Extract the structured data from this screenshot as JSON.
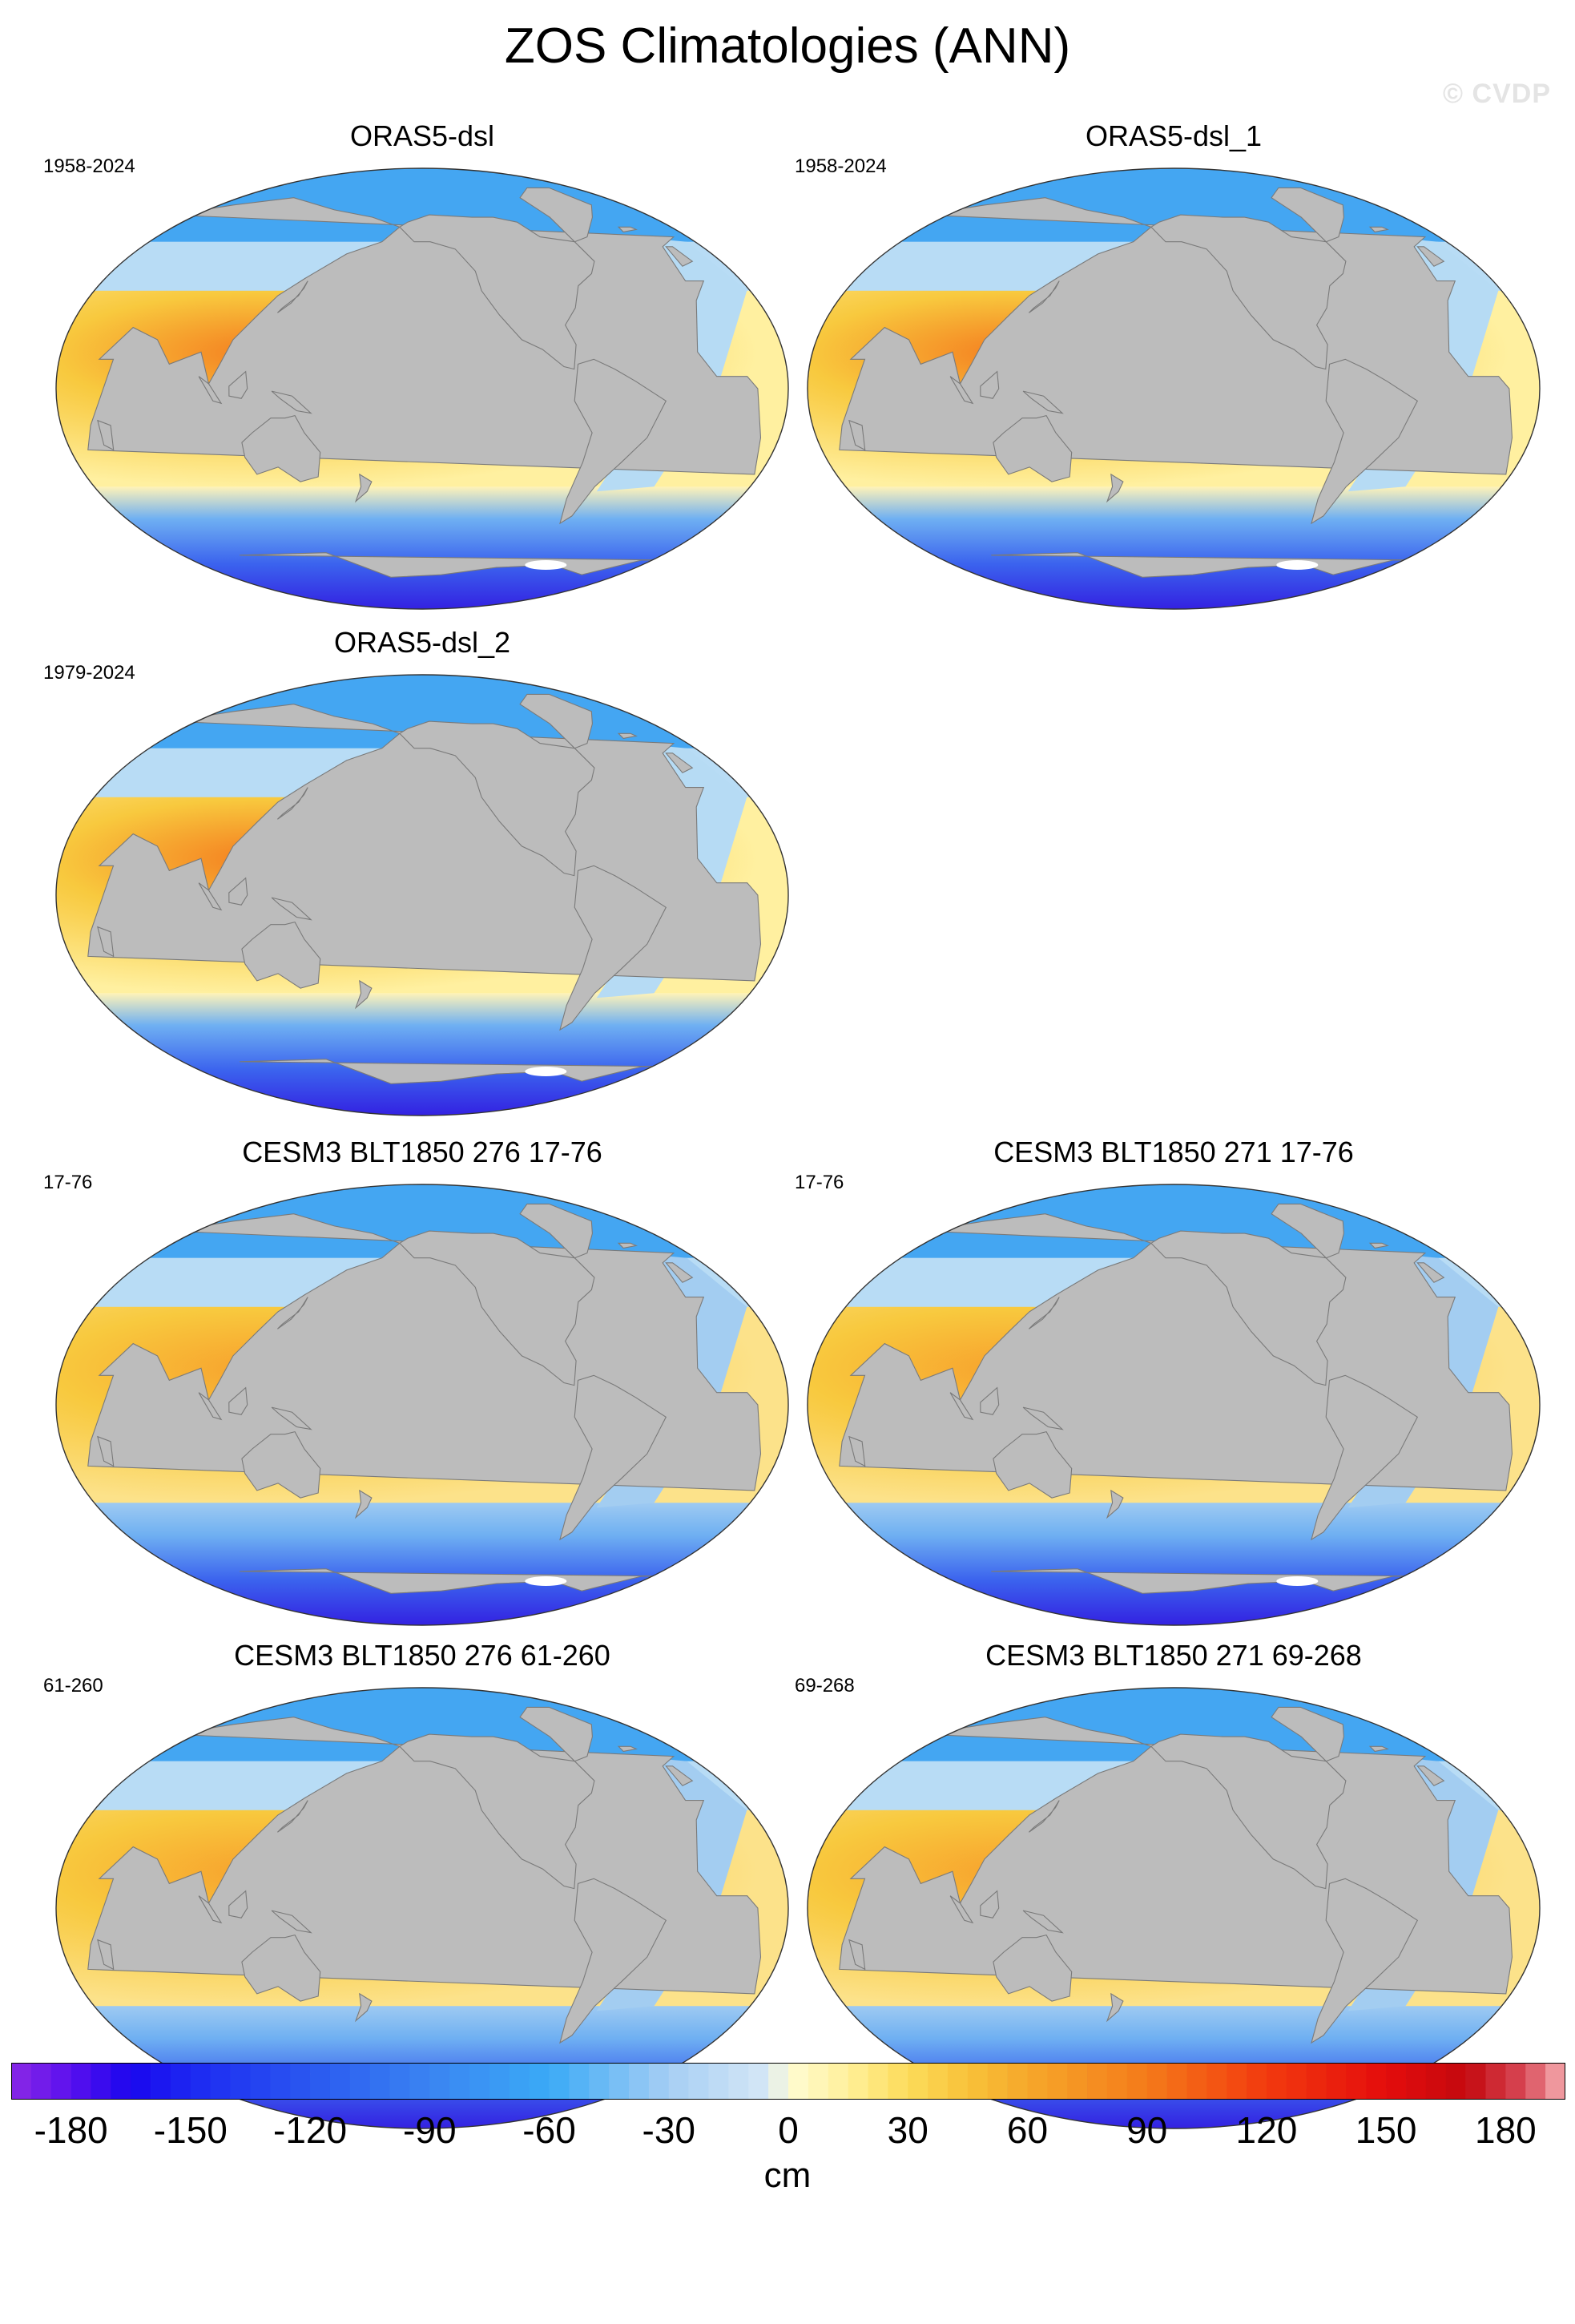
{
  "figure": {
    "title": "ZOS Climatologies (ANN)",
    "watermark": "© CVDP"
  },
  "colors": {
    "land": "#bcbcbc",
    "coast": "#7a7a7a",
    "sea_ice": "#ffffff",
    "ocean_high": "#f47a1e",
    "ocean_mid": "#f8c93e",
    "ocean_low": "#fff0a0",
    "ocean_atlantic": "#b8dcf5",
    "arctic": "#44a6f2",
    "southern_ocean": "#3b63ee",
    "southern_ocean_deep": "#3218e0"
  },
  "panels": [
    {
      "id": "oras5-dsl",
      "title": "ORAS5-dsl",
      "years": "1958-2024",
      "model": false
    },
    {
      "id": "oras5-dsl-1",
      "title": "ORAS5-dsl_1",
      "years": "1958-2024",
      "model": false
    },
    {
      "id": "oras5-dsl-2",
      "title": "ORAS5-dsl_2",
      "years": "1979-2024",
      "model": false
    },
    {
      "id": "cesm3-276-17-76",
      "title": "CESM3 BLT1850 276 17-76",
      "years": "17-76",
      "model": true
    },
    {
      "id": "cesm3-271-17-76",
      "title": "CESM3 BLT1850 271 17-76",
      "years": "17-76",
      "model": true
    },
    {
      "id": "cesm3-276-61-260",
      "title": "CESM3 BLT1850 276 61-260",
      "years": "61-260",
      "model": true
    },
    {
      "id": "cesm3-271-69-268",
      "title": "CESM3 BLT1850 271 69-268",
      "years": "69-268",
      "model": true
    }
  ],
  "colorbar": {
    "min": -195,
    "max": 195,
    "step": 5,
    "unit": "cm",
    "tick_labels": [
      "-180",
      "-150",
      "-120",
      "-90",
      "-60",
      "-30",
      "0",
      "30",
      "60",
      "90",
      "120",
      "150",
      "180"
    ],
    "tick_values": [
      -180,
      -150,
      -120,
      -90,
      -60,
      -30,
      0,
      30,
      60,
      90,
      120,
      150,
      180
    ],
    "color_stops": [
      [
        -195,
        "#8a28e6"
      ],
      [
        -180,
        "#5a10ee"
      ],
      [
        -165,
        "#1a06ee"
      ],
      [
        -150,
        "#1c28f2"
      ],
      [
        -120,
        "#2a58f0"
      ],
      [
        -90,
        "#3a84f2"
      ],
      [
        -60,
        "#3aaaf6"
      ],
      [
        -30,
        "#a6cef4"
      ],
      [
        -5,
        "#d6e8f6"
      ],
      [
        0,
        "#fffcd4"
      ],
      [
        15,
        "#fff09a"
      ],
      [
        30,
        "#fcdc5a"
      ],
      [
        45,
        "#f8c23a"
      ],
      [
        60,
        "#f6a82a"
      ],
      [
        90,
        "#f47a1a"
      ],
      [
        120,
        "#f23a0e"
      ],
      [
        150,
        "#e40c0c"
      ],
      [
        170,
        "#c4080e"
      ],
      [
        185,
        "#d84a58"
      ],
      [
        195,
        "#f6b0b4"
      ]
    ]
  }
}
